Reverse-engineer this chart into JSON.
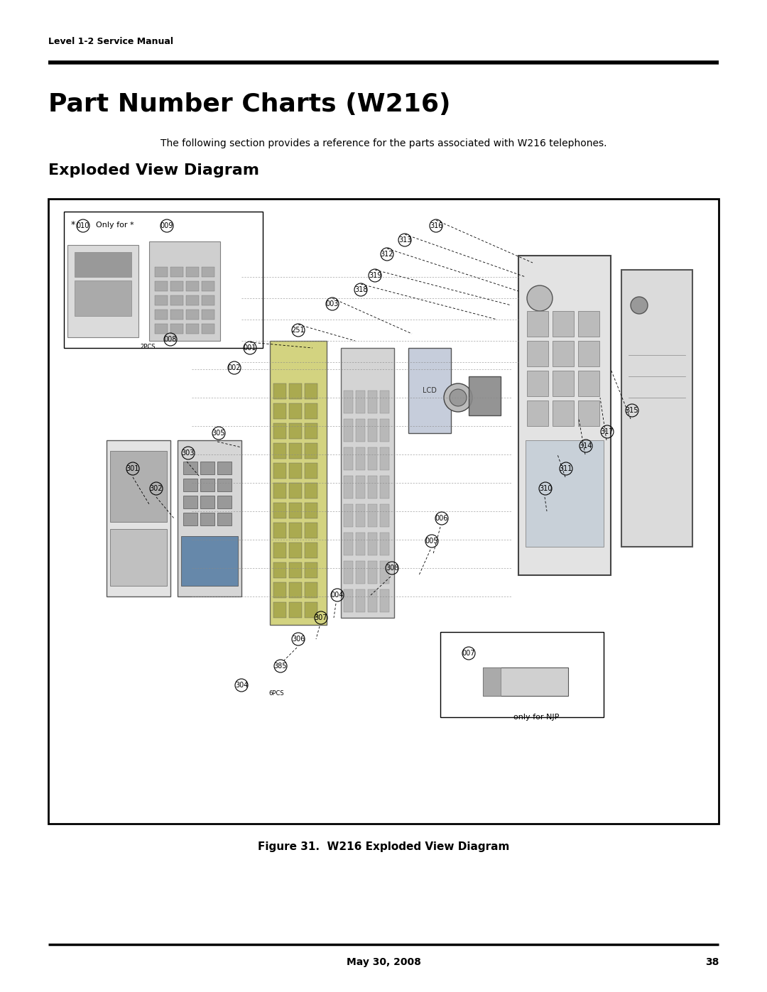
{
  "page_title": "Part Number Charts (W216)",
  "header_text": "Level 1-2 Service Manual",
  "subtitle": "The following section provides a reference for the parts associated with W216 telephones.",
  "section_title": "Exploded View Diagram",
  "figure_caption": "Figure 31.  W216 Exploded View Diagram",
  "footer_date": "May 30, 2008",
  "footer_page": "38",
  "bg_color": "#ffffff",
  "text_color": "#000000",
  "border_color": "#000000",
  "fig_width": 10.8,
  "fig_height": 13.97
}
